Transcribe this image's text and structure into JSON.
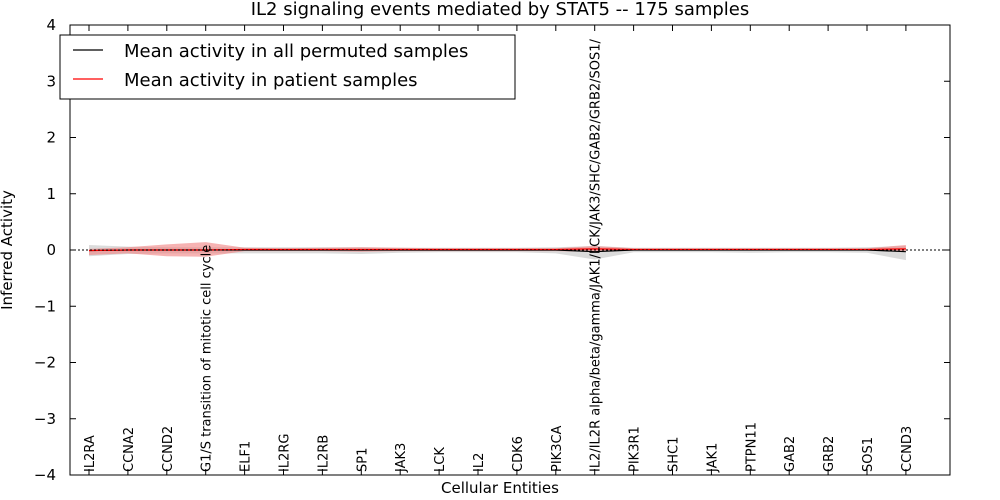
{
  "chart_data": {
    "type": "line",
    "title": "IL2 signaling events mediated by STAT5 -- 175 samples",
    "xlabel": "Cellular Entities",
    "ylabel": "Inferred Activity",
    "ylim": [
      -4,
      4
    ],
    "yticks": [
      {
        "value": 4,
        "label": "4"
      },
      {
        "value": 3,
        "label": "3"
      },
      {
        "value": 2,
        "label": "2"
      },
      {
        "value": 1,
        "label": "1"
      },
      {
        "value": 0,
        "label": "0"
      },
      {
        "value": -1,
        "label": "−1"
      },
      {
        "value": -2,
        "label": "−2"
      },
      {
        "value": -3,
        "label": "−3"
      },
      {
        "value": -4,
        "label": "−4"
      }
    ],
    "categories": [
      "IL2RA",
      "CCNA2",
      "CCND2",
      "G1/S transition of mitotic cell cycle",
      "ELF1",
      "IL2RG",
      "IL2RB",
      "SP1",
      "JAK3",
      "LCK",
      "IL2",
      "CDK6",
      "PIK3CA",
      "IL2/IL2R alpha/beta/gamma/JAK1/LCK/JAK3/SHC/GAB2/GRB2/SOS1/",
      "PIK3R1",
      "SHC1",
      "JAK1",
      "PTPN11",
      "GAB2",
      "GRB2",
      "SOS1",
      "CCND3"
    ],
    "legend": {
      "position": "top-left",
      "entries": [
        {
          "label": "Mean activity in all permuted samples",
          "color": "#000000"
        },
        {
          "label": "Mean activity in patient samples",
          "color": "#ff0000"
        }
      ]
    },
    "series": [
      {
        "name": "Mean activity in all permuted samples",
        "color": "#000000",
        "band_color": "#b0b0b0",
        "values": [
          -0.01,
          0.0,
          0.0,
          0.0,
          0.0,
          0.0,
          0.0,
          0.0,
          0.0,
          0.0,
          0.0,
          0.0,
          0.0,
          -0.03,
          0.0,
          0.0,
          0.0,
          0.0,
          0.0,
          0.0,
          0.0,
          -0.03
        ],
        "upper": [
          0.09,
          0.06,
          0.05,
          0.05,
          0.05,
          0.05,
          0.05,
          0.05,
          0.04,
          0.04,
          0.04,
          0.04,
          0.05,
          0.07,
          0.04,
          0.04,
          0.04,
          0.04,
          0.04,
          0.04,
          0.05,
          0.07
        ],
        "lower": [
          -0.11,
          -0.07,
          -0.06,
          -0.06,
          -0.06,
          -0.06,
          -0.06,
          -0.07,
          -0.05,
          -0.04,
          -0.04,
          -0.04,
          -0.06,
          -0.17,
          -0.04,
          -0.04,
          -0.04,
          -0.05,
          -0.04,
          -0.04,
          -0.05,
          -0.18
        ]
      },
      {
        "name": "Mean activity in patient samples",
        "color": "#ff0000",
        "band_color": "#f08080",
        "values": [
          -0.01,
          0.0,
          0.0,
          0.0,
          0.01,
          0.01,
          0.01,
          0.01,
          0.01,
          0.01,
          0.01,
          0.01,
          0.01,
          0.02,
          0.01,
          0.01,
          0.01,
          0.01,
          0.01,
          0.01,
          0.01,
          0.02
        ],
        "upper": [
          0.02,
          0.05,
          0.1,
          0.14,
          0.04,
          0.03,
          0.04,
          0.05,
          0.04,
          0.03,
          0.03,
          0.03,
          0.03,
          0.07,
          0.03,
          0.03,
          0.03,
          0.03,
          0.03,
          0.03,
          0.03,
          0.09
        ],
        "lower": [
          -0.09,
          -0.06,
          -0.11,
          -0.12,
          -0.02,
          -0.02,
          -0.02,
          -0.03,
          -0.02,
          -0.02,
          -0.02,
          -0.02,
          -0.02,
          -0.03,
          -0.01,
          -0.01,
          -0.01,
          -0.01,
          -0.01,
          -0.01,
          -0.01,
          -0.02
        ]
      }
    ]
  }
}
